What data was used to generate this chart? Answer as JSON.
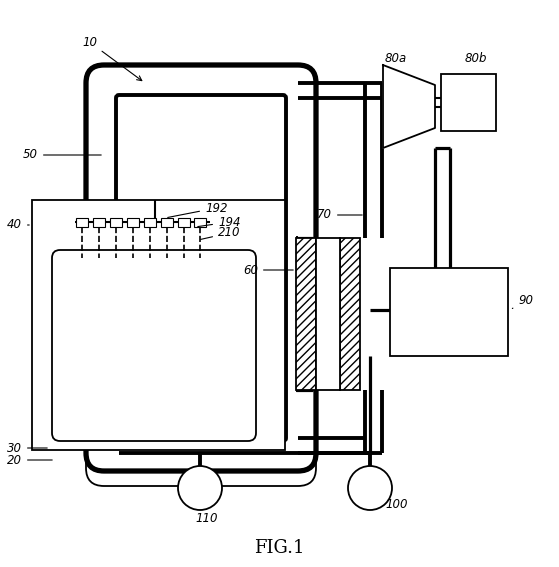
{
  "title": "FIG.1",
  "bg_color": "#ffffff",
  "line_color": "#000000",
  "label_10": "10",
  "label_20": "20",
  "label_30": "30",
  "label_40": "40",
  "label_50": "50",
  "label_60": "60",
  "label_70": "70",
  "label_80a": "80a",
  "label_80b": "80b",
  "label_90": "90",
  "label_100": "100",
  "label_110": "110",
  "label_192": "192",
  "label_194": "194",
  "label_210": "210",
  "fig_w": 5.59,
  "fig_h": 5.67,
  "dpi": 100
}
